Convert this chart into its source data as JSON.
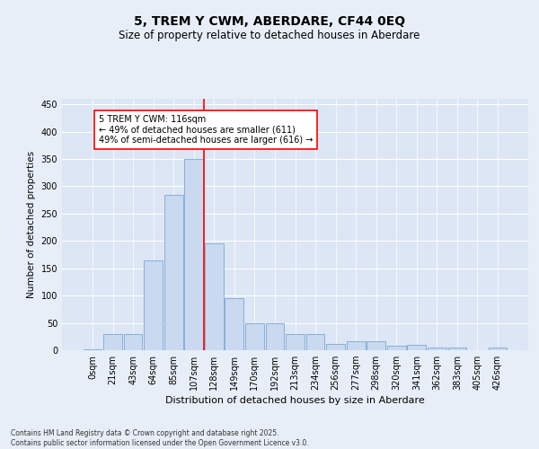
{
  "title1": "5, TREM Y CWM, ABERDARE, CF44 0EQ",
  "title2": "Size of property relative to detached houses in Aberdare",
  "xlabel": "Distribution of detached houses by size in Aberdare",
  "ylabel": "Number of detached properties",
  "bar_labels": [
    "0sqm",
    "21sqm",
    "43sqm",
    "64sqm",
    "85sqm",
    "107sqm",
    "128sqm",
    "149sqm",
    "170sqm",
    "192sqm",
    "213sqm",
    "234sqm",
    "256sqm",
    "277sqm",
    "298sqm",
    "320sqm",
    "341sqm",
    "362sqm",
    "383sqm",
    "405sqm",
    "426sqm"
  ],
  "bar_values": [
    2,
    30,
    30,
    165,
    285,
    350,
    195,
    95,
    50,
    50,
    30,
    30,
    12,
    16,
    16,
    8,
    10,
    5,
    5,
    0,
    5
  ],
  "bar_color": "#c9d9f0",
  "bar_edge_color": "#7ba7d4",
  "vline_x": 5.5,
  "vline_color": "red",
  "annotation_text": "5 TREM Y CWM: 116sqm\n← 49% of detached houses are smaller (611)\n49% of semi-detached houses are larger (616) →",
  "annotation_box_color": "white",
  "annotation_box_edge": "red",
  "ylim": [
    0,
    460
  ],
  "yticks": [
    0,
    50,
    100,
    150,
    200,
    250,
    300,
    350,
    400,
    450
  ],
  "footer_text": "Contains HM Land Registry data © Crown copyright and database right 2025.\nContains public sector information licensed under the Open Government Licence v3.0.",
  "background_color": "#e8eef8",
  "plot_bg_color": "#dce6f5",
  "title_fontsize": 10,
  "subtitle_fontsize": 8.5,
  "xlabel_fontsize": 8,
  "ylabel_fontsize": 7.5,
  "tick_fontsize": 7,
  "annotation_fontsize": 7,
  "footer_fontsize": 5.5
}
